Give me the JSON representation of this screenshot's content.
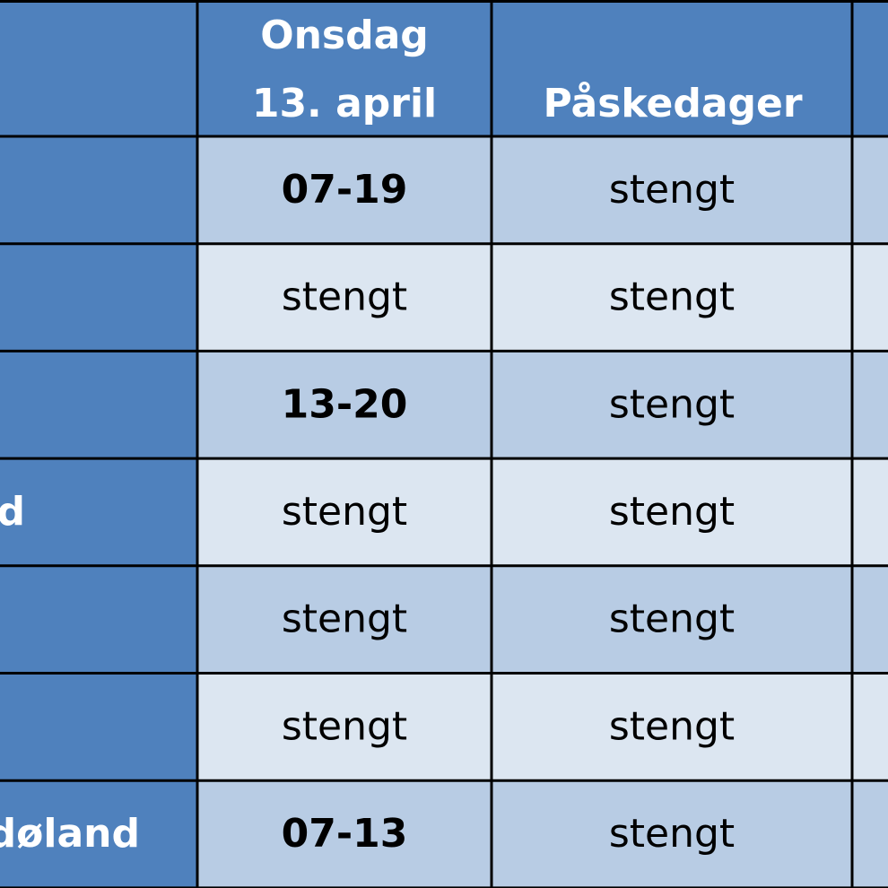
{
  "table": {
    "header": {
      "date_column": [
        "Onsdag",
        "13. april"
      ],
      "holiday_column": "Påskedager"
    },
    "rows": [
      {
        "cells": [
          "07-19",
          "stengt"
        ]
      },
      {
        "cells": [
          "stengt",
          "stengt"
        ]
      },
      {
        "cells": [
          "13-20",
          "stengt"
        ]
      },
      {
        "label": "d",
        "cells": [
          "stengt",
          "stengt"
        ]
      },
      {
        "cells": [
          "stengt",
          "stengt"
        ]
      },
      {
        "cells": [
          "stengt",
          "stengt"
        ]
      },
      {
        "label": "døland",
        "cells": [
          "07-13",
          "stengt"
        ]
      }
    ]
  }
}
